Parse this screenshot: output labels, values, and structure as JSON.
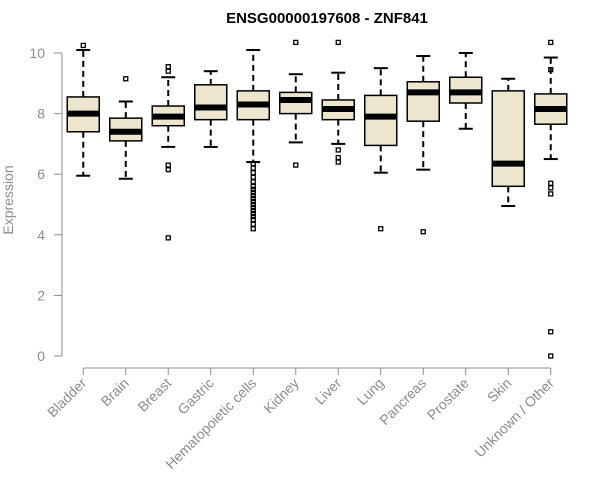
{
  "chart_data": {
    "type": "boxplot",
    "title": "ENSG00000197608 - ZNF841",
    "xlabel": "",
    "ylabel": "Expression",
    "ylim": [
      0,
      10
    ],
    "yticks": [
      0,
      2,
      4,
      6,
      8,
      10
    ],
    "grid": false,
    "box_fill": "#ede6cc",
    "median_color": "#000000",
    "axis_color": "#8c8c8c",
    "categories": [
      "Bladder",
      "Brain",
      "Breast",
      "Gastric",
      "Hematopoietic cells",
      "Kidney",
      "Liver",
      "Lung",
      "Pancreas",
      "Prostate",
      "Skin",
      "Unknown / Other"
    ],
    "boxes": [
      {
        "category": "Bladder",
        "whisker_low": 5.95,
        "q1": 7.4,
        "median": 8.0,
        "q3": 8.55,
        "whisker_high": 10.1,
        "outliers": [
          10.25
        ]
      },
      {
        "category": "Brain",
        "whisker_low": 5.85,
        "q1": 7.1,
        "median": 7.4,
        "q3": 7.85,
        "whisker_high": 8.4,
        "outliers": [
          9.15
        ]
      },
      {
        "category": "Breast",
        "whisker_low": 6.9,
        "q1": 7.6,
        "median": 7.9,
        "q3": 8.25,
        "whisker_high": 9.2,
        "outliers": [
          9.55,
          9.4,
          6.3,
          6.15,
          3.9
        ]
      },
      {
        "category": "Gastric",
        "whisker_low": 6.9,
        "q1": 7.8,
        "median": 8.2,
        "q3": 8.95,
        "whisker_high": 9.4,
        "outliers": []
      },
      {
        "category": "Hematopoietic cells",
        "whisker_low": 6.4,
        "q1": 7.8,
        "median": 8.3,
        "q3": 8.75,
        "whisker_high": 10.1,
        "outliers": [
          6.35,
          6.2,
          6.05,
          5.9,
          5.75,
          5.6,
          5.5,
          5.4,
          5.3,
          5.2,
          5.1,
          5.0,
          4.9,
          4.8,
          4.7,
          4.6,
          4.5,
          4.35,
          4.2
        ]
      },
      {
        "category": "Kidney",
        "whisker_low": 7.05,
        "q1": 8.0,
        "median": 8.45,
        "q3": 8.7,
        "whisker_high": 9.3,
        "outliers": [
          10.35,
          6.3
        ]
      },
      {
        "category": "Liver",
        "whisker_low": 7.0,
        "q1": 7.8,
        "median": 8.15,
        "q3": 8.45,
        "whisker_high": 9.35,
        "outliers": [
          10.35,
          6.8,
          6.55,
          6.4
        ]
      },
      {
        "category": "Lung",
        "whisker_low": 6.05,
        "q1": 6.95,
        "median": 7.9,
        "q3": 8.6,
        "whisker_high": 9.5,
        "outliers": [
          4.2
        ]
      },
      {
        "category": "Pancreas",
        "whisker_low": 6.15,
        "q1": 7.75,
        "median": 8.7,
        "q3": 9.05,
        "whisker_high": 9.9,
        "outliers": [
          4.1
        ]
      },
      {
        "category": "Prostate",
        "whisker_low": 7.5,
        "q1": 8.35,
        "median": 8.7,
        "q3": 9.2,
        "whisker_high": 10.0,
        "outliers": []
      },
      {
        "category": "Skin",
        "whisker_low": 4.95,
        "q1": 5.6,
        "median": 6.35,
        "q3": 8.75,
        "whisker_high": 9.15,
        "outliers": []
      },
      {
        "category": "Unknown / Other",
        "whisker_low": 6.5,
        "q1": 7.65,
        "median": 8.15,
        "q3": 8.65,
        "whisker_high": 9.85,
        "outliers": [
          10.35,
          9.45,
          5.7,
          5.55,
          5.35,
          0.8,
          0.0
        ]
      }
    ]
  }
}
